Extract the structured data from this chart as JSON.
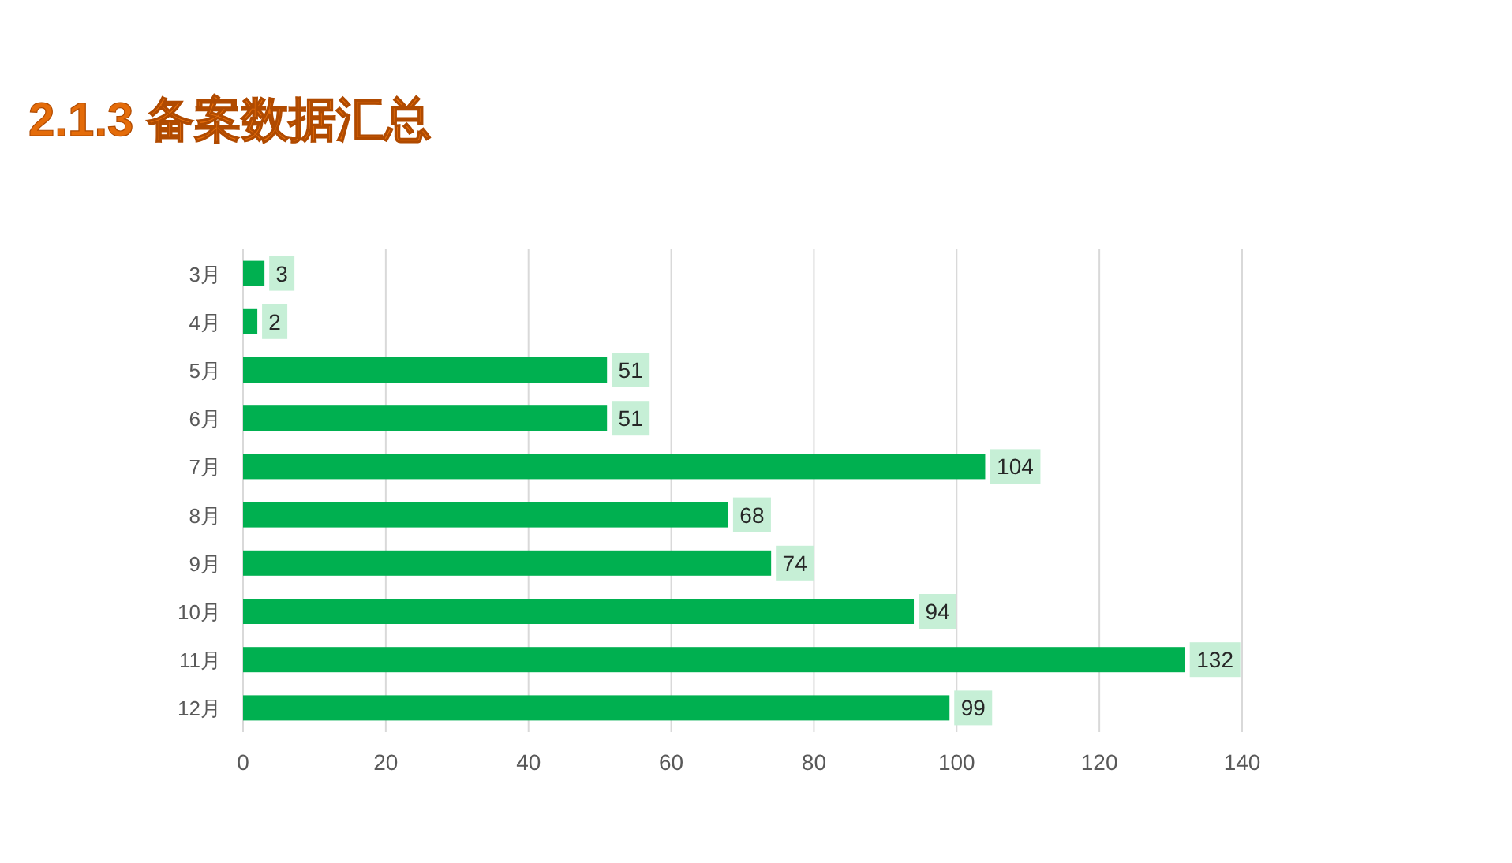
{
  "chart_data": {
    "type": "bar",
    "orientation": "horizontal",
    "title": "2.1.3 备案数据汇总",
    "categories": [
      "3月",
      "4月",
      "5月",
      "6月",
      "7月",
      "8月",
      "9月",
      "10月",
      "11月",
      "12月"
    ],
    "values": [
      3,
      2,
      51,
      51,
      104,
      68,
      74,
      94,
      132,
      99
    ],
    "color": "#00b050",
    "xlim": [
      0,
      140
    ],
    "xticks": [
      0,
      20,
      40,
      60,
      80,
      100,
      120,
      140
    ],
    "grid": "x",
    "data_labels": true
  }
}
